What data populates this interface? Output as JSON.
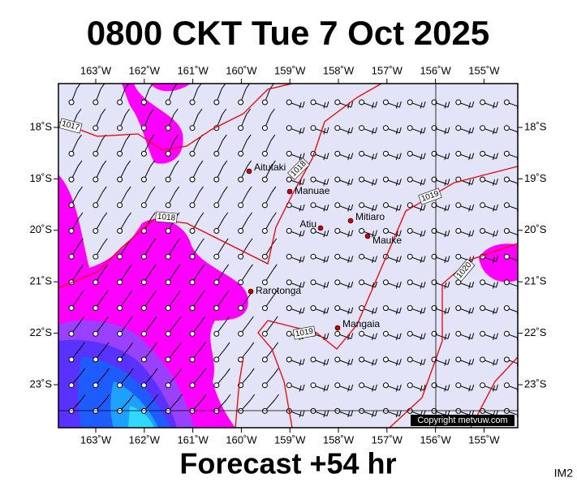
{
  "title": "0800 CKT Tue 7 Oct 2025",
  "subtitle": "Forecast +54 hr",
  "corner_label": "IM2",
  "copyright": "Copyright metvuw.com",
  "lon_labels": [
    "163˚W",
    "162˚W",
    "161˚W",
    "160˚W",
    "159˚W",
    "158˚W",
    "157˚W",
    "156˚W",
    "155˚W"
  ],
  "lat_labels": [
    "18˚S",
    "19˚S",
    "20˚S",
    "21˚S",
    "22˚S",
    "23˚S"
  ],
  "places": [
    "Aitutaki",
    "Manuae",
    "Atiu",
    "Mitiaro",
    "Mauke",
    "Rarotonga",
    "Mangaia"
  ],
  "isobar_labels": [
    "1017",
    "1018",
    "1018",
    "1019",
    "1019",
    "1020"
  ]
}
